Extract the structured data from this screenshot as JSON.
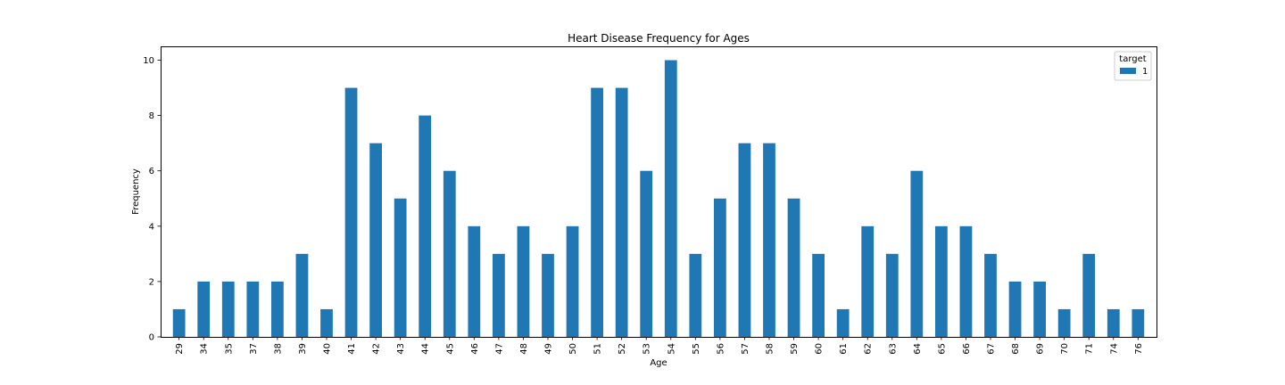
{
  "chart_data": {
    "type": "bar",
    "title": "Heart Disease Frequency for Ages",
    "xlabel": "Age",
    "ylabel": "Frequency",
    "ylim": [
      0,
      10.5
    ],
    "yticks": [
      0,
      2,
      4,
      6,
      8,
      10
    ],
    "categories": [
      "29",
      "34",
      "35",
      "37",
      "38",
      "39",
      "40",
      "41",
      "42",
      "43",
      "44",
      "45",
      "46",
      "47",
      "48",
      "49",
      "50",
      "51",
      "52",
      "53",
      "54",
      "55",
      "56",
      "57",
      "58",
      "59",
      "60",
      "61",
      "62",
      "63",
      "64",
      "65",
      "66",
      "67",
      "68",
      "69",
      "70",
      "71",
      "74",
      "76"
    ],
    "series": [
      {
        "name": "1",
        "color": "#1f77b4",
        "values": [
          1,
          2,
          2,
          2,
          2,
          3,
          1,
          9,
          7,
          5,
          8,
          6,
          4,
          3,
          4,
          3,
          4,
          9,
          9,
          6,
          10,
          3,
          5,
          7,
          7,
          5,
          3,
          1,
          4,
          3,
          6,
          4,
          4,
          3,
          2,
          2,
          1,
          3,
          1,
          1
        ]
      }
    ],
    "legend": {
      "title": "target",
      "placement": "top-right"
    },
    "grid": false,
    "x_tick_rotation": "vertical"
  }
}
